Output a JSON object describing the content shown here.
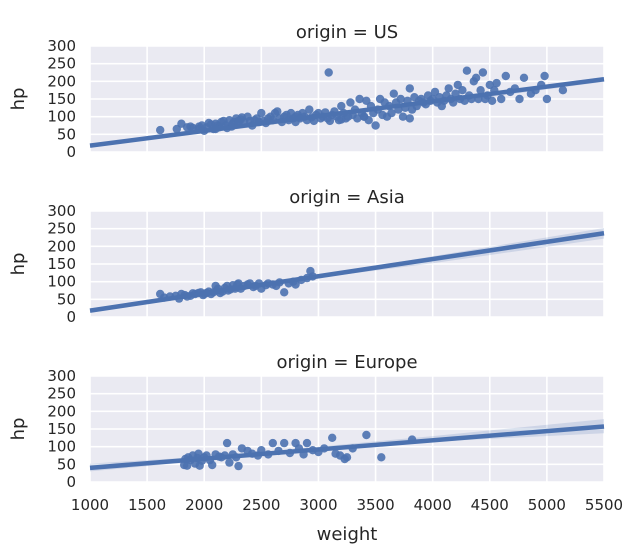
{
  "chart_data": [
    {
      "type": "scatter",
      "title": "origin = US",
      "ylabel": "hp",
      "xlabel": "",
      "xlim": [
        1000,
        5500
      ],
      "ylim": [
        0,
        300
      ],
      "xticks": [],
      "yticks": [
        0,
        50,
        100,
        150,
        200,
        250,
        300
      ],
      "grid": true,
      "color": "#4c72b0",
      "fit": {
        "x": [
          1000,
          5500
        ],
        "y": [
          18,
          206
        ]
      },
      "ci": {
        "x": [
          1000,
          2000,
          3000,
          4000,
          5500
        ],
        "upper": [
          22,
          57,
          98,
          140,
          213
        ],
        "lower": [
          14,
          53,
          94,
          134,
          199
        ]
      },
      "points": {
        "x": [
          1615,
          1760,
          1800,
          1850,
          1880,
          1900,
          1950,
          1955,
          1980,
          2000,
          2020,
          2040,
          2060,
          2080,
          2100,
          2120,
          2130,
          2150,
          2170,
          2190,
          2200,
          2220,
          2240,
          2250,
          2260,
          2280,
          2300,
          2320,
          2330,
          2350,
          2380,
          2400,
          2420,
          2440,
          2460,
          2480,
          2500,
          2520,
          2540,
          2560,
          2580,
          2600,
          2620,
          2640,
          2660,
          2680,
          2700,
          2720,
          2740,
          2760,
          2780,
          2800,
          2820,
          2840,
          2860,
          2880,
          2900,
          2920,
          2940,
          2960,
          2980,
          3000,
          3020,
          3040,
          3060,
          3080,
          3100,
          3120,
          3140,
          3160,
          3180,
          3200,
          3220,
          3240,
          3260,
          3280,
          3300,
          3320,
          3340,
          3360,
          3380,
          3400,
          3420,
          3440,
          3460,
          3480,
          3500,
          3520,
          3540,
          3560,
          3580,
          3600,
          3620,
          3640,
          3660,
          3680,
          3700,
          3720,
          3740,
          3760,
          3780,
          3800,
          3820,
          3840,
          3860,
          3880,
          3900,
          3920,
          3940,
          3960,
          3980,
          4000,
          4020,
          4040,
          4060,
          4080,
          4100,
          4120,
          4140,
          4160,
          4180,
          4200,
          4220,
          4240,
          4260,
          4280,
          4300,
          4320,
          4340,
          4360,
          4380,
          4400,
          4420,
          4440,
          4460,
          4480,
          4500,
          4520,
          4540,
          4560,
          4600,
          4640,
          4680,
          4720,
          4760,
          4800,
          4860,
          4900,
          4950,
          4980,
          5000,
          5140,
          3090,
          3400,
          3800,
          3200,
          2800,
          2300,
          2100
        ],
        "y": [
          62,
          65,
          80,
          70,
          72,
          68,
          65,
          72,
          75,
          60,
          70,
          82,
          78,
          65,
          80,
          75,
          70,
          85,
          88,
          75,
          68,
          90,
          72,
          80,
          85,
          95,
          88,
          92,
          98,
          85,
          100,
          88,
          75,
          90,
          95,
          85,
          110,
          88,
          82,
          95,
          100,
          90,
          110,
          115,
          95,
          85,
          100,
          105,
          90,
          110,
          95,
          100,
          105,
          95,
          110,
          100,
          90,
          120,
          98,
          88,
          105,
          110,
          95,
          100,
          112,
          95,
          88,
          105,
          115,
          100,
          90,
          130,
          110,
          95,
          100,
          140,
          105,
          120,
          95,
          150,
          110,
          100,
          145,
          90,
          130,
          110,
          75,
          120,
          150,
          105,
          140,
          100,
          130,
          110,
          165,
          140,
          120,
          150,
          100,
          125,
          145,
          180,
          120,
          155,
          130,
          145,
          150,
          140,
          135,
          160,
          145,
          150,
          170,
          140,
          155,
          130,
          145,
          160,
          180,
          150,
          140,
          165,
          190,
          150,
          175,
          145,
          230,
          160,
          150,
          200,
          210,
          150,
          175,
          225,
          150,
          160,
          190,
          145,
          175,
          195,
          150,
          215,
          170,
          180,
          150,
          210,
          165,
          175,
          190,
          215,
          150,
          175,
          225,
          100,
          95,
          92,
          85,
          80,
          65
        ]
      }
    },
    {
      "type": "scatter",
      "title": "origin = Asia",
      "ylabel": "hp",
      "xlabel": "",
      "xlim": [
        1000,
        5500
      ],
      "ylim": [
        0,
        300
      ],
      "xticks": [],
      "yticks": [
        0,
        50,
        100,
        150,
        200,
        250,
        300
      ],
      "grid": true,
      "color": "#4c72b0",
      "fit": {
        "x": [
          1000,
          5500
        ],
        "y": [
          18,
          237
        ]
      },
      "ci": {
        "x": [
          1000,
          2000,
          3000,
          4000,
          5500
        ],
        "upper": [
          24,
          70,
          117,
          172,
          252
        ],
        "lower": [
          12,
          62,
          111,
          152,
          222
        ]
      },
      "points": {
        "x": [
          1615,
          1650,
          1700,
          1750,
          1780,
          1800,
          1830,
          1850,
          1880,
          1900,
          1920,
          1950,
          1970,
          1990,
          2000,
          2020,
          2040,
          2060,
          2080,
          2100,
          2110,
          2120,
          2140,
          2160,
          2180,
          2200,
          2210,
          2230,
          2250,
          2270,
          2290,
          2300,
          2320,
          2350,
          2380,
          2400,
          2430,
          2450,
          2480,
          2500,
          2540,
          2560,
          2600,
          2630,
          2660,
          2700,
          2740,
          2780,
          2800,
          2850,
          2900,
          2930,
          2950
        ],
        "y": [
          65,
          55,
          58,
          60,
          52,
          65,
          62,
          58,
          60,
          67,
          65,
          68,
          70,
          62,
          65,
          68,
          72,
          65,
          70,
          88,
          75,
          80,
          68,
          72,
          82,
          88,
          75,
          78,
          90,
          80,
          92,
          95,
          80,
          88,
          92,
          95,
          85,
          88,
          95,
          80,
          90,
          95,
          92,
          88,
          98,
          70,
          95,
          100,
          92,
          105,
          110,
          130,
          115
        ]
      }
    },
    {
      "type": "scatter",
      "title": "origin = Europe",
      "ylabel": "hp",
      "xlabel": "weight",
      "xlim": [
        1000,
        5500
      ],
      "ylim": [
        0,
        300
      ],
      "xticks": [
        1000,
        1500,
        2000,
        2500,
        3000,
        3500,
        4000,
        4500,
        5000,
        5500
      ],
      "yticks": [
        0,
        50,
        100,
        150,
        200,
        250,
        300
      ],
      "grid": true,
      "color": "#4c72b0",
      "fit": {
        "x": [
          1000,
          5500
        ],
        "y": [
          40,
          157
        ]
      },
      "ci": {
        "x": [
          1000,
          2000,
          3000,
          4000,
          5500
        ],
        "upper": [
          52,
          72,
          100,
          130,
          178
        ],
        "lower": [
          30,
          60,
          88,
          114,
          138
        ]
      },
      "points": {
        "x": [
          1825,
          1835,
          1850,
          1860,
          1880,
          1900,
          1920,
          1940,
          1950,
          1960,
          1980,
          2000,
          2020,
          2050,
          2070,
          2100,
          2130,
          2150,
          2180,
          2200,
          2220,
          2250,
          2280,
          2300,
          2330,
          2380,
          2420,
          2470,
          2500,
          2560,
          2600,
          2650,
          2700,
          2750,
          2800,
          2830,
          2870,
          2900,
          2950,
          3000,
          3050,
          3120,
          3150,
          3190,
          3230,
          3250,
          3300,
          3420,
          3550,
          3820
        ],
        "y": [
          48,
          65,
          46,
          70,
          62,
          75,
          52,
          68,
          80,
          46,
          60,
          70,
          75,
          62,
          48,
          78,
          72,
          70,
          75,
          110,
          55,
          78,
          70,
          45,
          95,
          88,
          80,
          75,
          90,
          78,
          110,
          88,
          110,
          82,
          110,
          95,
          78,
          110,
          90,
          85,
          95,
          125,
          80,
          75,
          65,
          70,
          95,
          133,
          70,
          120
        ]
      }
    }
  ]
}
